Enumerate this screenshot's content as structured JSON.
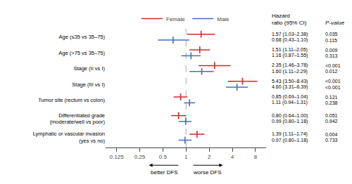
{
  "chart_data": {
    "type": "forest",
    "categories": [
      "Age (≤35 vs 35–75)",
      "Age (>75 vs 35–75)",
      "Stage (II vs I)",
      "Stage (III vs I)",
      "Tumor site (rectum vs colon)",
      "Differentiated grade\n(moderate/well vs poor)",
      "Lymphatic or vascular invasion\n(yes vs no)"
    ],
    "series": [
      {
        "name": "Female",
        "color": "#d62728",
        "values": [
          1.57,
          1.51,
          2.35,
          5.43,
          0.85,
          0.8,
          1.39
        ],
        "lo": [
          1.03,
          1.11,
          1.46,
          3.5,
          0.69,
          0.64,
          1.11
        ],
        "hi": [
          2.38,
          2.05,
          3.78,
          8.43,
          1.04,
          1.0,
          1.74
        ],
        "value_labels": [
          "1.57 (1.03–2.38)",
          "1.51 (1.11–2.05)",
          "2.35 (1.46–3.78)",
          "5.43 (3.50–8.43)",
          "0.85 (0.69–1.04)",
          "0.80 (0.64–1.00)",
          "1.39 (1.11–1.74)"
        ],
        "p_labels": [
          "0.035",
          "0.009",
          "<0.001",
          "<0.001",
          "0.121",
          "0.051",
          "0.004"
        ]
      },
      {
        "name": "Male",
        "color": "#3f6fbf",
        "values": [
          0.68,
          1.16,
          1.6,
          4.6,
          1.11,
          0.99,
          0.97
        ],
        "lo": [
          0.43,
          0.87,
          1.11,
          3.31,
          0.94,
          0.8,
          0.8
        ],
        "hi": [
          1.1,
          1.55,
          2.29,
          6.39,
          1.31,
          1.18,
          1.18
        ],
        "value_labels": [
          "0.68 (0.43–1.10)",
          "1.16 (0.87–1.55)",
          "1.60 (1.11–2.29)",
          "4.60 (3.31–6.39)",
          "1.11 (0.94–1.31)",
          "0.99 (0.80–1.18)",
          "0.97 (0.80–1.18)"
        ],
        "p_labels": [
          "0.115",
          "0.313",
          "0.012",
          "<0.001",
          "0.238",
          "0.942",
          "0.733"
        ]
      }
    ],
    "columns": [
      "Hazard\nratio (95% CI)",
      "P-value"
    ],
    "ref_line": 1,
    "xlim": [
      0.09,
      11
    ],
    "xticks": [
      0.125,
      0.25,
      0.5,
      1,
      2,
      4,
      8
    ],
    "log": "x",
    "grid": false,
    "legend": "top",
    "annotations": [
      {
        "text": "better DFS",
        "direction": "left"
      },
      {
        "text": "worse DFS",
        "direction": "right"
      }
    ]
  }
}
